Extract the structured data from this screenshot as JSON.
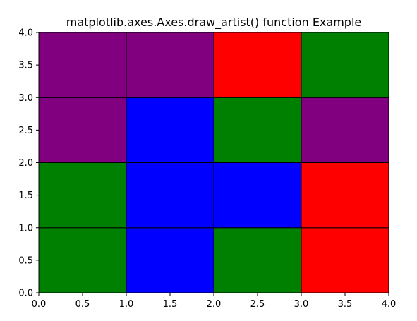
{
  "chart_data": {
    "type": "heatmap",
    "title": "matplotlib.axes.Axes.draw_artist() function Example",
    "xlabel": "",
    "ylabel": "",
    "xlim": [
      0.0,
      4.0
    ],
    "ylim": [
      0.0,
      4.0
    ],
    "grid": false,
    "legend": "none",
    "xticks": [
      "0.0",
      "0.5",
      "1.0",
      "1.5",
      "2.0",
      "2.5",
      "3.0",
      "3.5",
      "4.0"
    ],
    "yticks": [
      "0.0",
      "0.5",
      "1.0",
      "1.5",
      "2.0",
      "2.5",
      "3.0",
      "3.5",
      "4.0"
    ],
    "xtick_values": [
      0,
      0.5,
      1,
      1.5,
      2,
      2.5,
      3,
      3.5,
      4
    ],
    "ytick_values": [
      0,
      0.5,
      1,
      1.5,
      2,
      2.5,
      3,
      3.5,
      4
    ],
    "cells": [
      {
        "x": 0,
        "y": 0,
        "w": 1,
        "h": 1,
        "color": "green"
      },
      {
        "x": 1,
        "y": 0,
        "w": 1,
        "h": 1,
        "color": "blue"
      },
      {
        "x": 2,
        "y": 0,
        "w": 1,
        "h": 1,
        "color": "green"
      },
      {
        "x": 3,
        "y": 0,
        "w": 1,
        "h": 1,
        "color": "red"
      },
      {
        "x": 0,
        "y": 1,
        "w": 1,
        "h": 1,
        "color": "green"
      },
      {
        "x": 1,
        "y": 1,
        "w": 1,
        "h": 1,
        "color": "blue"
      },
      {
        "x": 2,
        "y": 1,
        "w": 1,
        "h": 1,
        "color": "blue"
      },
      {
        "x": 3,
        "y": 1,
        "w": 1,
        "h": 1,
        "color": "red"
      },
      {
        "x": 0,
        "y": 2,
        "w": 1,
        "h": 1,
        "color": "purple"
      },
      {
        "x": 1,
        "y": 2,
        "w": 1,
        "h": 1,
        "color": "blue"
      },
      {
        "x": 2,
        "y": 2,
        "w": 1,
        "h": 1,
        "color": "green"
      },
      {
        "x": 3,
        "y": 2,
        "w": 1,
        "h": 1,
        "color": "purple"
      },
      {
        "x": 0,
        "y": 3,
        "w": 1,
        "h": 1,
        "color": "purple"
      },
      {
        "x": 1,
        "y": 3,
        "w": 1,
        "h": 1,
        "color": "purple"
      },
      {
        "x": 2,
        "y": 3,
        "w": 1,
        "h": 1,
        "color": "red"
      },
      {
        "x": 3,
        "y": 3,
        "w": 1,
        "h": 1,
        "color": "green"
      }
    ],
    "colors": {
      "green": "#008000",
      "blue": "#0000ff",
      "red": "#ff0000",
      "purple": "#800080",
      "edge": "#000000",
      "axes": "#000000",
      "background": "#ffffff"
    }
  }
}
